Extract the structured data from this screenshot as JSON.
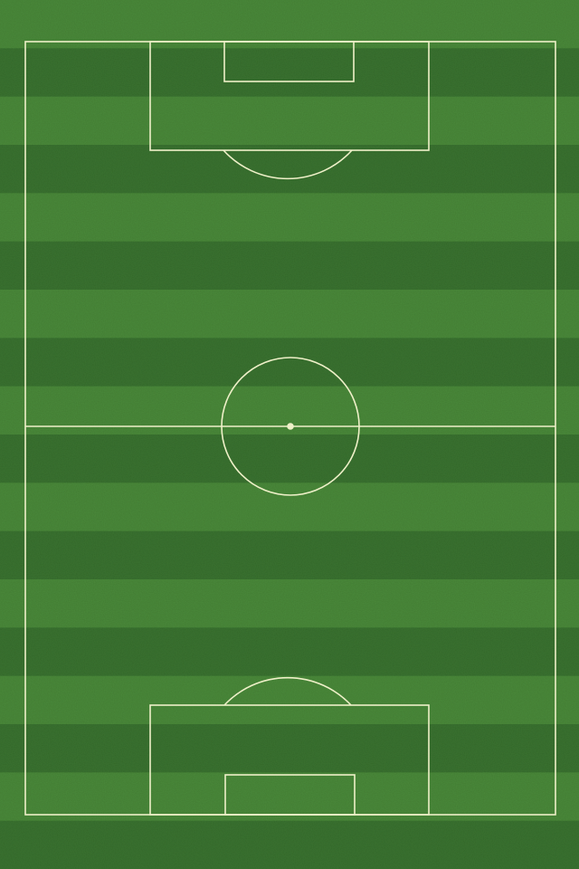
{
  "pitch": {
    "grass_light": "#4a8a3a",
    "grass_dark": "#3a7330",
    "line_color": "#eef0c8",
    "stripe_count": 18
  }
}
